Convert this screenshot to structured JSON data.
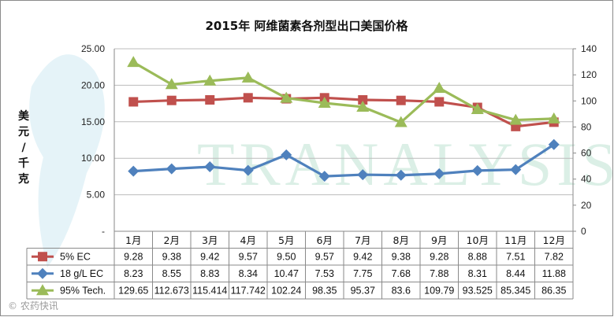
{
  "chart_data": {
    "type": "line",
    "title": "2015年 阿维菌素各剂型出口美国价格",
    "ylabel": "美元/千克",
    "categories": [
      "1月",
      "2月",
      "3月",
      "4月",
      "5月",
      "6月",
      "7月",
      "8月",
      "9月",
      "10月",
      "11月",
      "12月"
    ],
    "y_left": {
      "ylim": [
        0,
        25
      ],
      "ticks": [
        "25.00",
        "20.00",
        "15.00",
        "10.00",
        "5.00",
        "-"
      ]
    },
    "y_right": {
      "ylim": [
        0,
        140
      ],
      "ticks": [
        "140",
        "120",
        "100",
        "80",
        "60",
        "40",
        "20",
        "0"
      ]
    },
    "grid": true,
    "legend": "table-below",
    "series": [
      {
        "name": "5% EC",
        "axis": "left",
        "color": "#c0504d",
        "marker": "square",
        "values": [
          9.28,
          9.38,
          9.42,
          9.57,
          9.5,
          9.57,
          9.42,
          9.38,
          9.28,
          8.88,
          7.51,
          7.82
        ],
        "labels": [
          "9.28",
          "9.38",
          "9.42",
          "9.57",
          "9.50",
          "9.57",
          "9.42",
          "9.38",
          "9.28",
          "8.88",
          "7.51",
          "7.82"
        ]
      },
      {
        "name": "18 g/L EC",
        "axis": "left",
        "color": "#4f81bd",
        "marker": "diamond",
        "values": [
          8.23,
          8.55,
          8.83,
          8.34,
          10.47,
          7.53,
          7.75,
          7.68,
          7.88,
          8.31,
          8.44,
          11.88
        ],
        "labels": [
          "8.23",
          "8.55",
          "8.83",
          "8.34",
          "10.47",
          "7.53",
          "7.75",
          "7.68",
          "7.88",
          "8.31",
          "8.44",
          "11.88"
        ]
      },
      {
        "name": "95% Tech.",
        "axis": "right",
        "color": "#9bbb59",
        "marker": "triangle",
        "values": [
          129.65,
          112.673,
          115.414,
          117.742,
          102.24,
          98.35,
          95.37,
          83.6,
          109.79,
          93.525,
          85.345,
          86.35
        ],
        "labels": [
          "129.65",
          "112.673",
          "115.414",
          "117.742",
          "102.24",
          "98.35",
          "95.37",
          "83.6",
          "109.79",
          "93.525",
          "85.345",
          "86.35"
        ]
      }
    ],
    "note": "5% EC line is plotted against the right axis in the source image"
  },
  "watermark": {
    "text": "TRANALYSIS",
    "source": "© 农药快讯"
  }
}
